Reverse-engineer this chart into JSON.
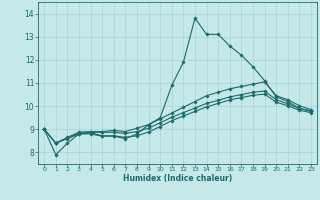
{
  "xlabel": "Humidex (Indice chaleur)",
  "xlim": [
    -0.5,
    23.5
  ],
  "ylim": [
    7.5,
    14.5
  ],
  "yticks": [
    8,
    9,
    10,
    11,
    12,
    13,
    14
  ],
  "xticks": [
    0,
    1,
    2,
    3,
    4,
    5,
    6,
    7,
    8,
    9,
    10,
    11,
    12,
    13,
    14,
    15,
    16,
    17,
    18,
    19,
    20,
    21,
    22,
    23
  ],
  "background_color": "#c5e8e8",
  "grid_color": "#a8d5d5",
  "line_color": "#1a6b6b",
  "series": [
    [
      9.0,
      7.9,
      8.4,
      8.8,
      8.8,
      8.7,
      8.7,
      8.6,
      8.8,
      9.2,
      9.5,
      10.9,
      11.9,
      13.8,
      13.1,
      13.1,
      12.6,
      12.2,
      11.7,
      11.1,
      10.4,
      10.2,
      9.9,
      9.8
    ],
    [
      9.0,
      8.4,
      8.65,
      8.88,
      8.9,
      8.9,
      8.95,
      8.9,
      9.05,
      9.2,
      9.45,
      9.7,
      9.95,
      10.2,
      10.45,
      10.6,
      10.75,
      10.85,
      10.95,
      11.05,
      10.45,
      10.28,
      10.02,
      9.85
    ],
    [
      9.0,
      8.4,
      8.62,
      8.82,
      8.87,
      8.87,
      8.87,
      8.82,
      8.9,
      9.05,
      9.28,
      9.52,
      9.72,
      9.92,
      10.12,
      10.25,
      10.4,
      10.5,
      10.6,
      10.65,
      10.28,
      10.1,
      9.9,
      9.78
    ],
    [
      9.0,
      8.4,
      8.6,
      8.8,
      8.85,
      8.72,
      8.72,
      8.65,
      8.72,
      8.88,
      9.12,
      9.37,
      9.57,
      9.77,
      9.97,
      10.12,
      10.27,
      10.37,
      10.47,
      10.52,
      10.17,
      10.02,
      9.82,
      9.72
    ]
  ]
}
